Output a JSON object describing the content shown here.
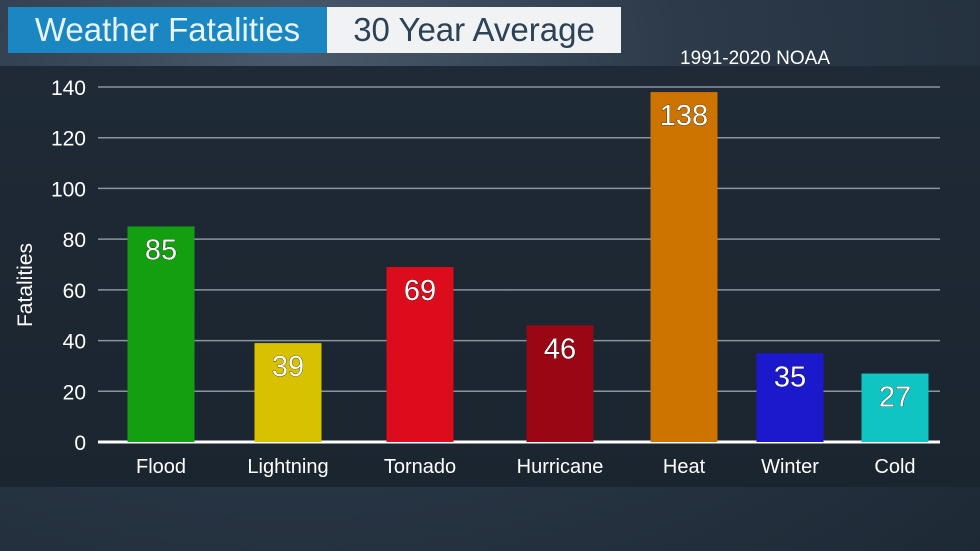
{
  "chart_data": {
    "type": "bar",
    "title": "Weather Fatalities",
    "subtitle": "30 Year Average",
    "source": "1991-2020 NOAA",
    "xlabel": "",
    "ylabel": "Fatalities",
    "ylim": [
      0,
      140
    ],
    "yticks": [
      0,
      20,
      40,
      60,
      80,
      100,
      120,
      140
    ],
    "grid": true,
    "categories": [
      "Flood",
      "Lightning",
      "Tornado",
      "Hurricane",
      "Heat",
      "Winter",
      "Cold"
    ],
    "values": [
      85,
      39,
      69,
      46,
      138,
      35,
      27
    ],
    "colors": [
      "#12a010",
      "#d8c200",
      "#dc0c1c",
      "#9a0614",
      "#cc7300",
      "#1c18cc",
      "#10c4c4"
    ]
  }
}
